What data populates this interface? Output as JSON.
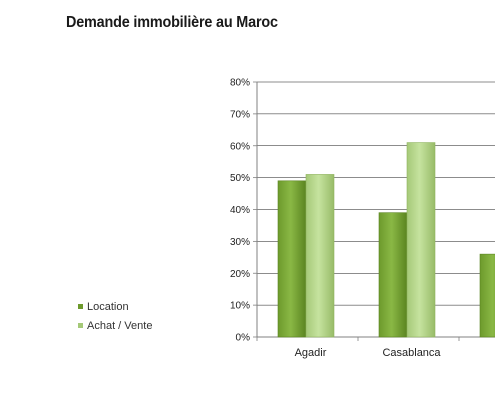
{
  "title": "Demande immobilière au Maroc",
  "legend": {
    "items": [
      {
        "label": "Location",
        "color_key": "location"
      },
      {
        "label": "Achat / Vente",
        "color_key": "achat"
      }
    ]
  },
  "colors": {
    "location": "#7fa83a",
    "location_dark": "#5f8a24",
    "achat": "#b7d88a",
    "achat_dark": "#93ba62",
    "axis": "#808080",
    "grid": "#000000"
  },
  "chart_data": {
    "type": "bar",
    "title": "Demande immobilière au Maroc",
    "xlabel": "",
    "ylabel": "",
    "ylim": [
      0,
      80
    ],
    "yticks": [
      "0%",
      "10%",
      "20%",
      "30%",
      "40%",
      "50%",
      "60%",
      "70%",
      "80%"
    ],
    "grid": true,
    "legend_position": "left",
    "categories": [
      "Agadir",
      "Casablanca",
      ""
    ],
    "series": [
      {
        "name": "Location",
        "values": [
          49,
          39,
          26
        ]
      },
      {
        "name": "Achat / Vente",
        "values": [
          51,
          61,
          null
        ]
      }
    ]
  }
}
